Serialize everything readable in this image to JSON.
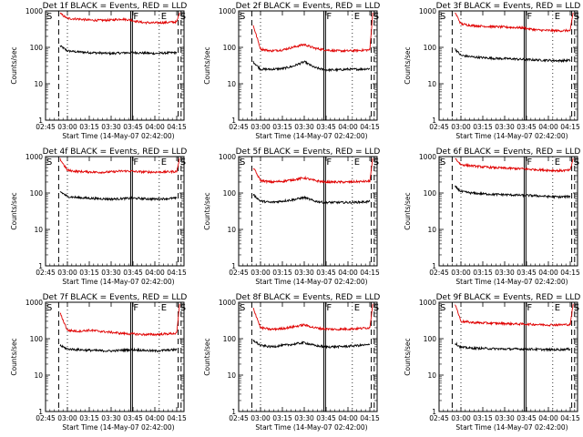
{
  "chart_data": {
    "type": "line",
    "layout": "3x3 small multiples",
    "xlabel": "Start Time (14-May-07 02:42:00)",
    "ylabel": "Counts/sec",
    "x_tick_labels": [
      "02:45",
      "03:00",
      "03:15",
      "03:30",
      "03:45",
      "04:00",
      "04:15"
    ],
    "x_tick_values_min": [
      3,
      18,
      33,
      48,
      63,
      78,
      93
    ],
    "xlim_min": [
      3,
      98
    ],
    "y_scale": "log",
    "ylim": [
      1,
      1000
    ],
    "y_tick_labels": [
      "1",
      "10",
      "100",
      "1000"
    ],
    "y_tick_values": [
      1,
      10,
      100,
      1000
    ],
    "series_colors": {
      "events": "#000000",
      "lld": "#e00000"
    },
    "legend_note": "BLACK = Events, RED = LLD",
    "marker_labels": {
      "start": "S",
      "flare": "F",
      "end": "E"
    },
    "panels": [
      {
        "title": "Det 1f BLACK = Events, RED = LLD",
        "start_min": 12,
        "markers_min": {
          "start": 3,
          "flare": 62,
          "end": 81,
          "end2": 96
        },
        "series": [
          {
            "name": "Events",
            "color": "#000000",
            "x": [
              13,
              18,
              25,
              33,
              40,
              48,
              55,
              62,
              63,
              70,
              78,
              85,
              93
            ],
            "y": [
              110,
              80,
              75,
              72,
              70,
              68,
              70,
              72,
              72,
              70,
              68,
              70,
              72
            ]
          },
          {
            "name": "LLD",
            "color": "#e00000",
            "x": [
              13,
              18,
              25,
              33,
              40,
              48,
              55,
              62,
              63,
              70,
              78,
              85,
              93,
              95
            ],
            "y": [
              850,
              620,
              600,
              560,
              550,
              560,
              600,
              560,
              540,
              480,
              470,
              480,
              500,
              900
            ]
          }
        ]
      },
      {
        "title": "Det 2f BLACK = Events, RED = LLD",
        "start_min": 12,
        "markers_min": {
          "start": 3,
          "flare": 62,
          "end": 81,
          "end2": 96
        },
        "series": [
          {
            "name": "Events",
            "color": "#000000",
            "x": [
              13,
              18,
              25,
              33,
              40,
              48,
              55,
              62,
              63,
              70,
              78,
              85,
              93
            ],
            "y": [
              40,
              25,
              25,
              26,
              30,
              40,
              28,
              24,
              24,
              24,
              25,
              25,
              26
            ]
          },
          {
            "name": "LLD",
            "color": "#e00000",
            "x": [
              13,
              18,
              25,
              33,
              40,
              48,
              55,
              62,
              63,
              70,
              78,
              85,
              93,
              95
            ],
            "y": [
              400,
              90,
              80,
              85,
              100,
              120,
              95,
              85,
              85,
              80,
              80,
              82,
              85,
              900
            ]
          }
        ]
      },
      {
        "title": "Det 3f BLACK = Events, RED = LLD",
        "start_min": 12,
        "markers_min": {
          "start": 3,
          "flare": 62,
          "end": 81,
          "end2": 96
        },
        "series": [
          {
            "name": "Events",
            "color": "#000000",
            "x": [
              14,
              18,
              25,
              33,
              40,
              48,
              55,
              62,
              63,
              70,
              78,
              85,
              93
            ],
            "y": [
              90,
              60,
              55,
              52,
              50,
              49,
              48,
              46,
              46,
              45,
              44,
              43,
              44
            ]
          },
          {
            "name": "LLD",
            "color": "#e00000",
            "x": [
              14,
              18,
              25,
              33,
              40,
              48,
              55,
              62,
              63,
              70,
              78,
              85,
              93,
              95
            ],
            "y": [
              900,
              440,
              400,
              380,
              370,
              360,
              350,
              340,
              330,
              300,
              290,
              285,
              290,
              900
            ]
          }
        ]
      },
      {
        "title": "Det 4f BLACK = Events, RED = LLD",
        "start_min": 12,
        "markers_min": {
          "start": 3,
          "flare": 62,
          "end": 81,
          "end2": 96
        },
        "series": [
          {
            "name": "Events",
            "color": "#000000",
            "x": [
              13,
              18,
              25,
              33,
              40,
              48,
              55,
              62,
              63,
              70,
              78,
              85,
              93
            ],
            "y": [
              110,
              80,
              75,
              72,
              70,
              68,
              70,
              72,
              72,
              70,
              68,
              70,
              72
            ]
          },
          {
            "name": "LLD",
            "color": "#e00000",
            "x": [
              13,
              18,
              25,
              33,
              40,
              48,
              55,
              62,
              63,
              70,
              78,
              85,
              93,
              95
            ],
            "y": [
              850,
              420,
              390,
              380,
              370,
              380,
              400,
              400,
              390,
              380,
              375,
              380,
              390,
              900
            ]
          }
        ]
      },
      {
        "title": "Det 5f BLACK = Events, RED = LLD",
        "start_min": 12,
        "markers_min": {
          "start": 3,
          "flare": 62,
          "end": 81,
          "end2": 96
        },
        "series": [
          {
            "name": "Events",
            "color": "#000000",
            "x": [
              13,
              18,
              25,
              33,
              40,
              48,
              55,
              62,
              63,
              70,
              78,
              85,
              93
            ],
            "y": [
              90,
              60,
              55,
              60,
              65,
              75,
              60,
              55,
              55,
              55,
              55,
              56,
              58
            ]
          },
          {
            "name": "LLD",
            "color": "#e00000",
            "x": [
              13,
              18,
              25,
              33,
              40,
              48,
              55,
              62,
              63,
              70,
              78,
              85,
              93,
              95
            ],
            "y": [
              500,
              220,
              200,
              210,
              230,
              260,
              220,
              200,
              200,
              200,
              200,
              205,
              210,
              900
            ]
          }
        ]
      },
      {
        "title": "Det 6f BLACK = Events, RED = LLD",
        "start_min": 12,
        "markers_min": {
          "start": 3,
          "flare": 62,
          "end": 81,
          "end2": 96
        },
        "series": [
          {
            "name": "Events",
            "color": "#000000",
            "x": [
              14,
              18,
              25,
              33,
              40,
              48,
              55,
              62,
              63,
              70,
              78,
              85,
              93
            ],
            "y": [
              150,
              110,
              100,
              95,
              92,
              90,
              88,
              86,
              86,
              84,
              80,
              78,
              80
            ]
          },
          {
            "name": "LLD",
            "color": "#e00000",
            "x": [
              14,
              18,
              25,
              33,
              40,
              48,
              55,
              62,
              63,
              70,
              78,
              85,
              93,
              95
            ],
            "y": [
              900,
              600,
              560,
              520,
              500,
              480,
              470,
              460,
              450,
              440,
              420,
              410,
              420,
              900
            ]
          }
        ]
      },
      {
        "title": "Det 7f BLACK = Events, RED = LLD",
        "start_min": 12,
        "markers_min": {
          "start": 3,
          "flare": 62,
          "end": 81,
          "end2": 96
        },
        "series": [
          {
            "name": "Events",
            "color": "#000000",
            "x": [
              13,
              18,
              25,
              33,
              40,
              48,
              55,
              62,
              63,
              70,
              78,
              85,
              93
            ],
            "y": [
              65,
              52,
              50,
              48,
              47,
              46,
              48,
              50,
              50,
              48,
              46,
              48,
              50
            ]
          },
          {
            "name": "LLD",
            "color": "#e00000",
            "x": [
              13,
              18,
              25,
              33,
              40,
              48,
              55,
              62,
              63,
              70,
              78,
              85,
              93,
              95
            ],
            "y": [
              500,
              170,
              160,
              170,
              160,
              150,
              140,
              135,
              135,
              130,
              130,
              135,
              140,
              900
            ]
          }
        ]
      },
      {
        "title": "Det 8f BLACK = Events, RED = LLD",
        "start_min": 12,
        "markers_min": {
          "start": 3,
          "flare": 62,
          "end": 81,
          "end2": 96
        },
        "series": [
          {
            "name": "Events",
            "color": "#000000",
            "x": [
              13,
              18,
              25,
              33,
              40,
              48,
              55,
              62,
              63,
              70,
              78,
              85,
              93
            ],
            "y": [
              90,
              65,
              60,
              65,
              70,
              78,
              65,
              60,
              60,
              60,
              62,
              65,
              68
            ]
          },
          {
            "name": "LLD",
            "color": "#e00000",
            "x": [
              13,
              18,
              25,
              33,
              40,
              48,
              55,
              62,
              63,
              70,
              78,
              85,
              93,
              95
            ],
            "y": [
              700,
              200,
              180,
              190,
              210,
              240,
              200,
              185,
              185,
              180,
              185,
              190,
              200,
              900
            ]
          }
        ]
      },
      {
        "title": "Det 9f BLACK = Events, RED = LLD",
        "start_min": 12,
        "markers_min": {
          "start": 3,
          "flare": 62,
          "end": 81,
          "end2": 96
        },
        "series": [
          {
            "name": "Events",
            "color": "#000000",
            "x": [
              14,
              18,
              25,
              33,
              40,
              48,
              55,
              62,
              63,
              70,
              78,
              85,
              93
            ],
            "y": [
              75,
              58,
              55,
              54,
              53,
              52,
              52,
              52,
              52,
              51,
              50,
              50,
              52
            ]
          },
          {
            "name": "LLD",
            "color": "#e00000",
            "x": [
              14,
              18,
              25,
              33,
              40,
              48,
              55,
              62,
              63,
              70,
              78,
              85,
              93,
              95
            ],
            "y": [
              900,
              300,
              280,
              270,
              265,
              260,
              255,
              250,
              250,
              245,
              240,
              240,
              245,
              900
            ]
          }
        ]
      }
    ]
  }
}
